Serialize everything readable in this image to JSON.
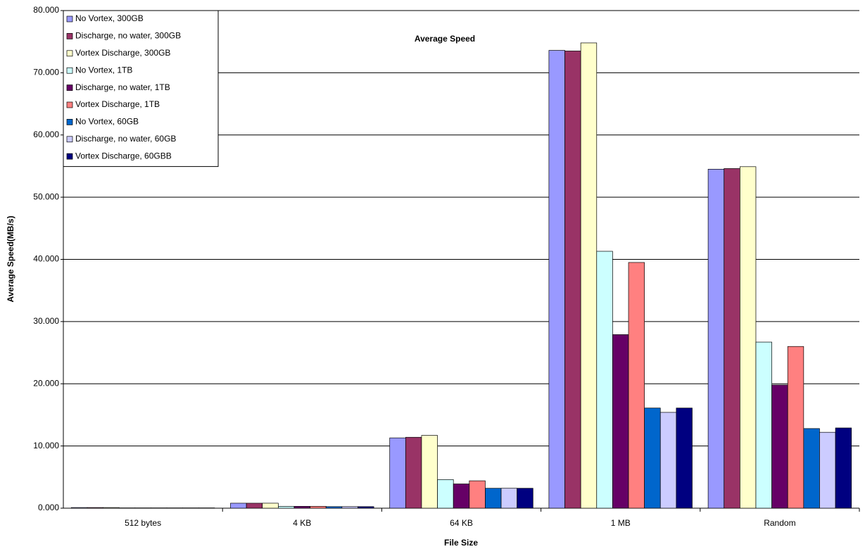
{
  "chart_data": {
    "type": "bar",
    "title": "Average Speed",
    "x_label": "File Size",
    "y_label": "Average Speed(MB/s)",
    "categories": [
      "512 bytes",
      "4 KB",
      "64 KB",
      "1 MB",
      "Random"
    ],
    "series": [
      {
        "name": "No Vortex, 300GB",
        "color": "#9999ff",
        "values": [
          0.1,
          0.8,
          11.3,
          73.6,
          54.5
        ]
      },
      {
        "name": "Discharge, no water, 300GB",
        "color": "#993366",
        "values": [
          0.1,
          0.8,
          11.4,
          73.5,
          54.6
        ]
      },
      {
        "name": "Vortex Discharge, 300GB",
        "color": "#ffffcc",
        "values": [
          0.1,
          0.8,
          11.7,
          74.8,
          54.9
        ]
      },
      {
        "name": "No Vortex, 1TB",
        "color": "#ccffff",
        "values": [
          0.05,
          0.3,
          4.6,
          41.3,
          26.7
        ]
      },
      {
        "name": "Discharge, no water, 1TB",
        "color": "#660066",
        "values": [
          0.05,
          0.3,
          3.9,
          27.9,
          19.8
        ]
      },
      {
        "name": "Vortex Discharge, 1TB",
        "color": "#ff8080",
        "values": [
          0.05,
          0.3,
          4.4,
          39.5,
          26.0
        ]
      },
      {
        "name": "No Vortex, 60GB",
        "color": "#0066cc",
        "values": [
          0.05,
          0.25,
          3.2,
          16.1,
          12.8
        ]
      },
      {
        "name": "Discharge, no water, 60GB",
        "color": "#ccccff",
        "values": [
          0.05,
          0.25,
          3.2,
          15.4,
          12.2
        ]
      },
      {
        "name": "Vortex Discharge, 60GBB",
        "color": "#000080",
        "values": [
          0.05,
          0.25,
          3.2,
          16.1,
          12.9
        ]
      }
    ],
    "ylim": [
      0,
      80
    ],
    "yticks": [
      {
        "value": 0,
        "label": "0.000"
      },
      {
        "value": 10,
        "label": "10.000"
      },
      {
        "value": 20,
        "label": "20.000"
      },
      {
        "value": 30,
        "label": "30.000"
      },
      {
        "value": 40,
        "label": "40.000"
      },
      {
        "value": 50,
        "label": "50.000"
      },
      {
        "value": 60,
        "label": "60.000"
      },
      {
        "value": 70,
        "label": "70.000"
      },
      {
        "value": 80,
        "label": "80.000"
      }
    ],
    "grid": true,
    "legend": "top-left"
  }
}
